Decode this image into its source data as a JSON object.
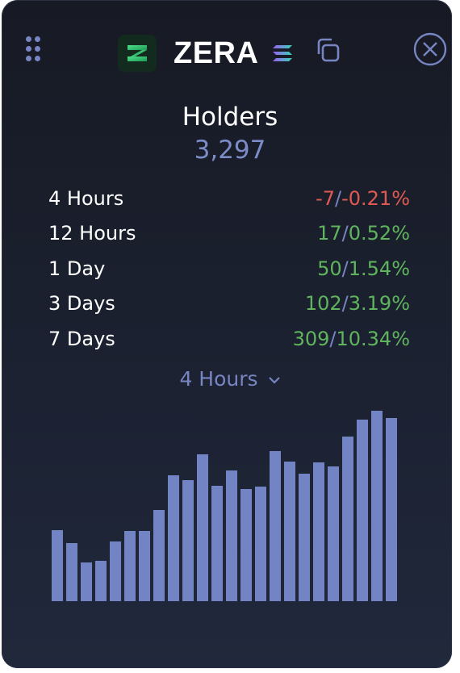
{
  "header": {
    "token_name": "ZERA",
    "logo_icon": "zera-token-logo",
    "chain_icon": "solana-icon",
    "copy_icon": "copy-icon",
    "close_icon": "close-icon",
    "drag_icon": "drag-handle-icon"
  },
  "metric": {
    "title": "Holders",
    "value": "3,297"
  },
  "stats": [
    {
      "label": "4 Hours",
      "change": "-7",
      "percent": "-0.21%",
      "direction": "down"
    },
    {
      "label": "12 Hours",
      "change": "17",
      "percent": "0.52%",
      "direction": "up"
    },
    {
      "label": "1 Day",
      "change": "50",
      "percent": "1.54%",
      "direction": "up"
    },
    {
      "label": "3 Days",
      "change": "102",
      "percent": "3.19%",
      "direction": "up"
    },
    {
      "label": "7 Days",
      "change": "309",
      "percent": "10.34%",
      "direction": "up"
    }
  ],
  "separator": "/",
  "timeframe": {
    "selected": "4 Hours",
    "icon": "chevron-down-icon"
  },
  "colors": {
    "positive": "#5fb45d",
    "negative": "#e05a52",
    "accent": "#7785c2",
    "bar": "#7384c4"
  },
  "chart_data": {
    "type": "bar",
    "values": [
      88,
      72,
      48,
      50,
      74,
      87,
      87,
      113,
      156,
      150,
      182,
      143,
      162,
      139,
      142,
      186,
      173,
      158,
      172,
      167,
      204,
      225,
      236,
      227
    ]
  }
}
